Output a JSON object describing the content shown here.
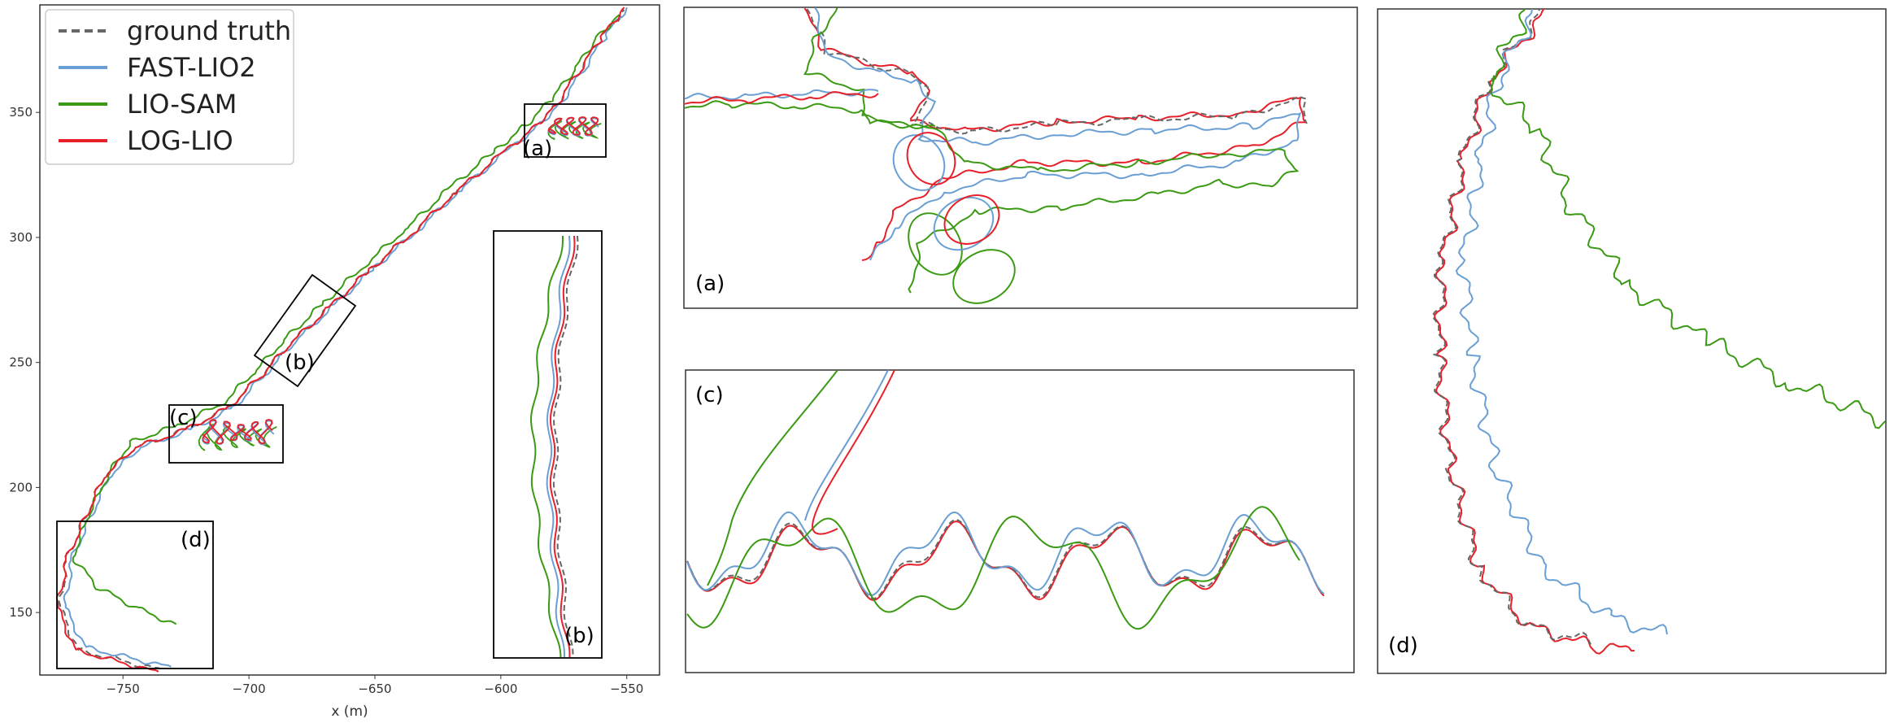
{
  "chart_data": {
    "type": "line",
    "xlabel": "x (m)",
    "ylabel": "",
    "xlim": [
      -783,
      -537
    ],
    "ylim": [
      125,
      393
    ],
    "xticks": [
      -750,
      -700,
      -650,
      -600,
      -550
    ],
    "yticks": [
      150,
      200,
      250,
      300,
      350
    ],
    "legend_position": "top-left",
    "colors": {
      "ground_truth": "#666666",
      "fast_lio2": "#6a9fd4",
      "lio_sam": "#3a9a13",
      "log_lio": "#e8202a"
    },
    "series": [
      {
        "name": "ground truth",
        "color": "#666666",
        "dashed": true,
        "points": [
          [
            -735,
            127
          ],
          [
            -768,
            135
          ],
          [
            -775,
            152
          ],
          [
            -772,
            172
          ],
          [
            -765,
            188
          ],
          [
            -757,
            205
          ],
          [
            -745,
            216
          ],
          [
            -725,
            223
          ],
          [
            -708,
            232
          ],
          [
            -695,
            245
          ],
          [
            -683,
            258
          ],
          [
            -668,
            272
          ],
          [
            -652,
            287
          ],
          [
            -635,
            302
          ],
          [
            -618,
            318
          ],
          [
            -600,
            333
          ],
          [
            -588,
            343
          ],
          [
            -578,
            353
          ],
          [
            -568,
            368
          ],
          [
            -560,
            380
          ],
          [
            -551,
            391
          ]
        ]
      },
      {
        "name": "FAST-LIO2",
        "color": "#6a9fd4",
        "dashed": false,
        "points": [
          [
            -731,
            128
          ],
          [
            -765,
            136
          ],
          [
            -773,
            152
          ],
          [
            -770,
            172
          ],
          [
            -763,
            188
          ],
          [
            -755,
            205
          ],
          [
            -743,
            216
          ],
          [
            -723,
            223
          ],
          [
            -706,
            232
          ],
          [
            -693,
            246
          ],
          [
            -681,
            259
          ],
          [
            -666,
            273
          ],
          [
            -650,
            288
          ],
          [
            -633,
            303
          ],
          [
            -616,
            319
          ],
          [
            -598,
            334
          ],
          [
            -586,
            344
          ],
          [
            -576,
            354
          ],
          [
            -566,
            369
          ],
          [
            -558,
            381
          ],
          [
            -550,
            392
          ]
        ]
      },
      {
        "name": "LIO-SAM",
        "color": "#3a9a13",
        "dashed": false,
        "points": [
          [
            -729,
            145
          ],
          [
            -745,
            152
          ],
          [
            -760,
            160
          ],
          [
            -770,
            172
          ],
          [
            -764,
            188
          ],
          [
            -756,
            205
          ],
          [
            -747,
            218
          ],
          [
            -728,
            225
          ],
          [
            -710,
            234
          ],
          [
            -697,
            247
          ],
          [
            -685,
            260
          ],
          [
            -670,
            274
          ],
          [
            -654,
            289
          ],
          [
            -637,
            304
          ],
          [
            -620,
            320
          ],
          [
            -602,
            335
          ],
          [
            -590,
            345
          ],
          [
            -580,
            355
          ],
          [
            -570,
            368
          ],
          [
            -562,
            380
          ],
          [
            -553,
            389
          ]
        ]
      },
      {
        "name": "LOG-LIO",
        "color": "#e8202a",
        "dashed": false,
        "points": [
          [
            -736,
            126
          ],
          [
            -769,
            135
          ],
          [
            -776,
            152
          ],
          [
            -772,
            172
          ],
          [
            -765,
            188
          ],
          [
            -757,
            205
          ],
          [
            -745,
            216
          ],
          [
            -725,
            223
          ],
          [
            -708,
            232
          ],
          [
            -695,
            245
          ],
          [
            -683,
            258
          ],
          [
            -668,
            272
          ],
          [
            -652,
            287
          ],
          [
            -635,
            302
          ],
          [
            -618,
            318
          ],
          [
            -600,
            333
          ],
          [
            -588,
            343
          ],
          [
            -578,
            353
          ],
          [
            -568,
            368
          ],
          [
            -560,
            380
          ],
          [
            -551,
            392
          ]
        ]
      }
    ],
    "annotations": [
      "(a)",
      "(b)",
      "(c)",
      "(d)"
    ],
    "insets": [
      {
        "label": "(a)",
        "region": {
          "x": [
            -589,
            -556
          ],
          "y": [
            333,
            355
          ]
        }
      },
      {
        "label": "(b)",
        "region": {
          "x": [
            -688,
            -661
          ],
          "y": [
            241,
            283
          ]
        }
      },
      {
        "label": "(c)",
        "region": {
          "x": [
            -718,
            -671
          ],
          "y": [
            209,
            232
          ]
        }
      },
      {
        "label": "(d)",
        "region": {
          "x": [
            -780,
            -716
          ],
          "y": [
            124,
            184
          ]
        }
      }
    ]
  },
  "panels": {
    "a": {
      "label": "(a)"
    },
    "b": {
      "label": "(b)"
    },
    "c": {
      "label": "(c)"
    },
    "d": {
      "label": "(d)"
    }
  }
}
